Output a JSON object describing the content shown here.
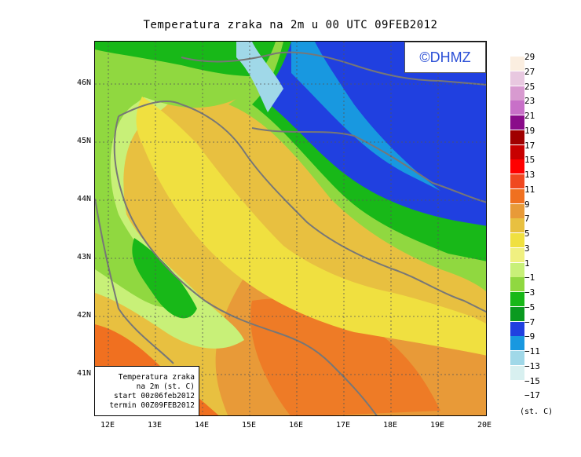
{
  "title": "Temperatura zraka na 2m u 00 UTC 09FEB2012",
  "copyright": "©DHMZ",
  "info": {
    "line1": "Temperatura zraka",
    "line2": "na 2m (st. C)",
    "line3": "start 00z06feb2012",
    "line4": "termin 00Z09FEB2012"
  },
  "lat_labels": [
    "46N",
    "45N",
    "44N",
    "43N",
    "42N",
    "41N"
  ],
  "lon_labels": [
    "12E",
    "13E",
    "14E",
    "15E",
    "16E",
    "17E",
    "18E",
    "19E",
    "20E"
  ],
  "legend": {
    "unit": "(st. C)",
    "levels": [
      "29",
      "27",
      "25",
      "23",
      "21",
      "19",
      "17",
      "15",
      "13",
      "11",
      "9",
      "7",
      "5",
      "3",
      "1",
      "−1",
      "−3",
      "−5",
      "−7",
      "−9",
      "−11",
      "−13",
      "−15",
      "−17"
    ],
    "colors": [
      "#fbeee0",
      "#e8c8e0",
      "#d89ad0",
      "#c870c8",
      "#8a0c8a",
      "#a00000",
      "#c80000",
      "#ff0000",
      "#f04820",
      "#f07020",
      "#e89a38",
      "#e8c040",
      "#f0e040",
      "#f0f080",
      "#c8f078",
      "#90d840",
      "#18b818",
      "#0a9a20",
      "#2040e0",
      "#1898e0",
      "#a0d8e8",
      "#d8f0f0",
      "#ffffff"
    ]
  },
  "palette": {
    "warm_core": "#e89a38",
    "warm_edge": "#f07020",
    "mild": "#f0e040",
    "cool_light": "#c8f078",
    "cool": "#90d840",
    "cold": "#18b818",
    "very_cold": "#2040e0",
    "frost": "#1898e0",
    "coast": "#777777"
  }
}
